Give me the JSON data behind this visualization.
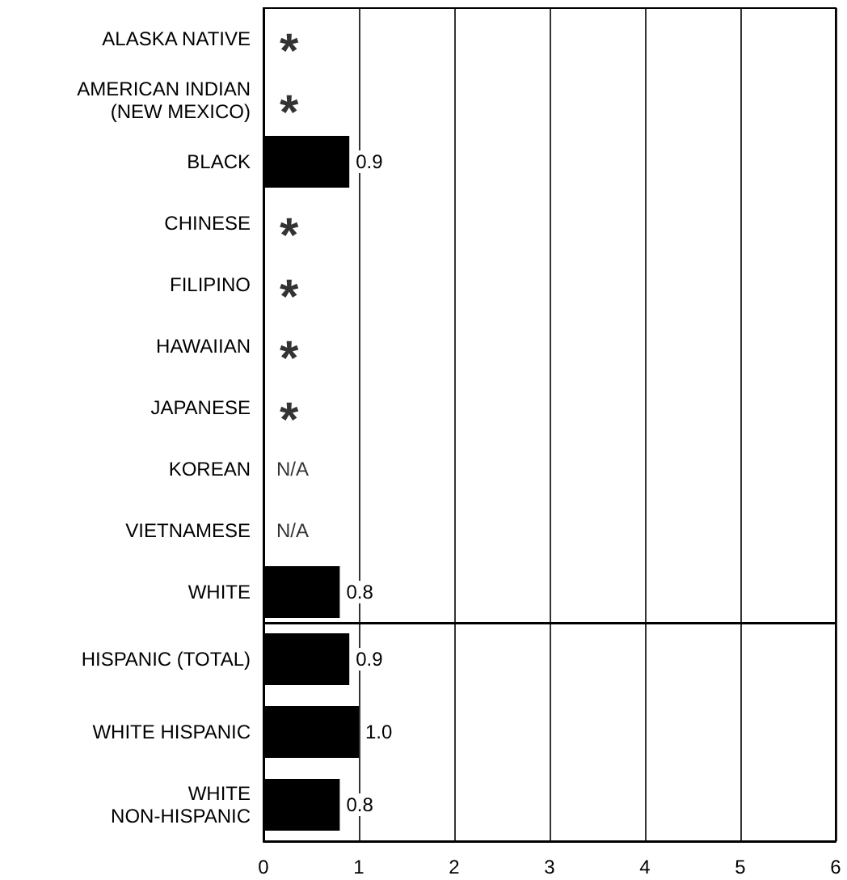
{
  "chart_data": [
    {
      "type": "bar",
      "orientation": "horizontal",
      "categories": [
        "ALASKA NATIVE",
        "AMERICAN INDIAN\n(NEW MEXICO)",
        "BLACK",
        "CHINESE",
        "FILIPINO",
        "HAWAIIAN",
        "JAPANESE",
        "KOREAN",
        "VIETNAMESE",
        "WHITE"
      ],
      "values": [
        null,
        null,
        0.9,
        null,
        null,
        null,
        null,
        null,
        null,
        0.8
      ],
      "value_labels": [
        "*",
        "*",
        "0.9",
        "*",
        "*",
        "*",
        "*",
        "N/A",
        "N/A",
        "0.8"
      ],
      "color": "#000000",
      "xlim": [
        0,
        6
      ],
      "xticks": [
        0,
        1,
        2,
        3,
        4,
        5,
        6
      ],
      "grid": "x",
      "tick_labels": "y"
    },
    {
      "type": "bar",
      "orientation": "horizontal",
      "categories": [
        "HISPANIC (TOTAL)",
        "WHITE HISPANIC",
        "WHITE\nNON-HISPANIC"
      ],
      "values": [
        0.9,
        1.0,
        0.8
      ],
      "value_labels": [
        "0.9",
        "1.0",
        "0.8"
      ],
      "color": "#000000",
      "xlim": [
        0,
        6
      ],
      "xticks": [
        0,
        1,
        2,
        3,
        4,
        5,
        6
      ],
      "grid": "x"
    }
  ]
}
